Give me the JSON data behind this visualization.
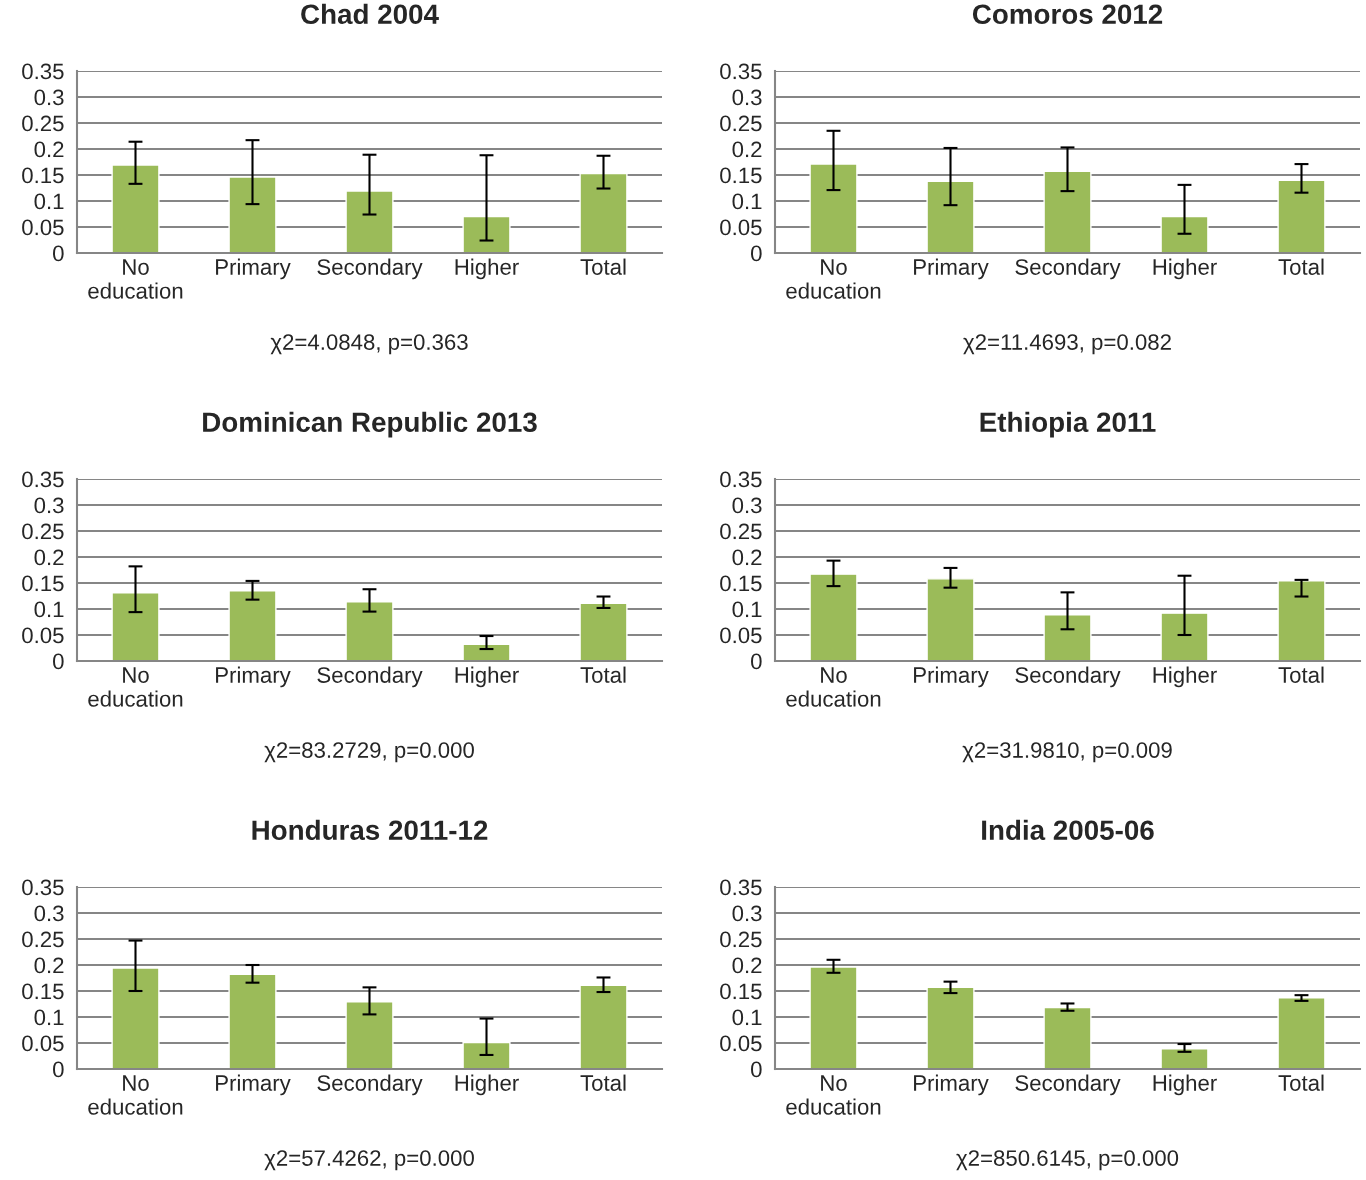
{
  "chart_data": [
    {
      "type": "bar",
      "title": "Chad 2004",
      "categories": [
        "No\neducation",
        "Primary",
        "Secondary",
        "Higher",
        "Total"
      ],
      "values": [
        0.169,
        0.146,
        0.119,
        0.07,
        0.153
      ],
      "errors": [
        [
          0.133,
          0.214
        ],
        [
          0.094,
          0.217
        ],
        [
          0.074,
          0.189
        ],
        [
          0.024,
          0.188
        ],
        [
          0.124,
          0.187
        ]
      ],
      "color": "#9bbb59",
      "ylim": [
        0,
        0.35
      ],
      "yticks": [
        0,
        0.05,
        0.1,
        0.15,
        0.2,
        0.25,
        0.3,
        0.35
      ],
      "grid": "y",
      "annotations": [
        "χ2=4.0848, p=0.363"
      ]
    },
    {
      "type": "bar",
      "title": "Comoros 2012",
      "categories": [
        "No\neducation",
        "Primary",
        "Secondary",
        "Higher",
        "Total"
      ],
      "values": [
        0.171,
        0.138,
        0.157,
        0.07,
        0.14
      ],
      "errors": [
        [
          0.121,
          0.235
        ],
        [
          0.092,
          0.202
        ],
        [
          0.119,
          0.203
        ],
        [
          0.037,
          0.131
        ],
        [
          0.116,
          0.171
        ]
      ],
      "color": "#9bbb59",
      "ylim": [
        0,
        0.35
      ],
      "yticks": [
        0,
        0.05,
        0.1,
        0.15,
        0.2,
        0.25,
        0.3,
        0.35
      ],
      "grid": "y",
      "annotations": [
        "χ2=11.4693, p=0.082"
      ]
    },
    {
      "type": "bar",
      "title": "Dominican Republic 2013",
      "categories": [
        "No\neducation",
        "Primary",
        "Secondary",
        "Higher",
        "Total"
      ],
      "values": [
        0.131,
        0.135,
        0.114,
        0.032,
        0.111
      ],
      "errors": [
        [
          0.094,
          0.182
        ],
        [
          0.118,
          0.154
        ],
        [
          0.095,
          0.138
        ],
        [
          0.023,
          0.048
        ],
        [
          0.102,
          0.124
        ]
      ],
      "color": "#9bbb59",
      "ylim": [
        0,
        0.35
      ],
      "yticks": [
        0,
        0.05,
        0.1,
        0.15,
        0.2,
        0.25,
        0.3,
        0.35
      ],
      "grid": "y",
      "annotations": [
        "χ2=83.2729, p=0.000"
      ]
    },
    {
      "type": "bar",
      "title": "Ethiopia 2011",
      "categories": [
        "No\neducation",
        "Primary",
        "Secondary",
        "Higher",
        "Total"
      ],
      "values": [
        0.167,
        0.158,
        0.089,
        0.092,
        0.154
      ],
      "errors": [
        [
          0.144,
          0.193
        ],
        [
          0.141,
          0.179
        ],
        [
          0.061,
          0.132
        ],
        [
          0.05,
          0.164
        ],
        [
          0.124,
          0.156
        ]
      ],
      "color": "#9bbb59",
      "ylim": [
        0,
        0.35
      ],
      "yticks": [
        0,
        0.05,
        0.1,
        0.15,
        0.2,
        0.25,
        0.3,
        0.35
      ],
      "grid": "y",
      "annotations": [
        "χ2=31.9810, p=0.009"
      ]
    },
    {
      "type": "bar",
      "title": "Honduras 2011-12",
      "categories": [
        "No\neducation",
        "Primary",
        "Secondary",
        "Higher",
        "Total"
      ],
      "values": [
        0.194,
        0.182,
        0.129,
        0.051,
        0.161
      ],
      "errors": [
        [
          0.15,
          0.247
        ],
        [
          0.166,
          0.2
        ],
        [
          0.105,
          0.157
        ],
        [
          0.027,
          0.097
        ],
        [
          0.148,
          0.176
        ]
      ],
      "color": "#9bbb59",
      "ylim": [
        0,
        0.35
      ],
      "yticks": [
        0,
        0.05,
        0.1,
        0.15,
        0.2,
        0.25,
        0.3,
        0.35
      ],
      "grid": "y",
      "annotations": [
        "χ2=57.4262, p=0.000"
      ]
    },
    {
      "type": "bar",
      "title": "India 2005-06",
      "categories": [
        "No\neducation",
        "Primary",
        "Secondary",
        "Higher",
        "Total"
      ],
      "values": [
        0.196,
        0.157,
        0.118,
        0.039,
        0.137
      ],
      "errors": [
        [
          0.185,
          0.21
        ],
        [
          0.146,
          0.168
        ],
        [
          0.112,
          0.126
        ],
        [
          0.033,
          0.048
        ],
        [
          0.131,
          0.142
        ]
      ],
      "color": "#9bbb59",
      "ylim": [
        0,
        0.35
      ],
      "yticks": [
        0,
        0.05,
        0.1,
        0.15,
        0.2,
        0.25,
        0.3,
        0.35
      ],
      "grid": "y",
      "annotations": [
        "χ2=850.6145, p=0.000"
      ]
    }
  ]
}
